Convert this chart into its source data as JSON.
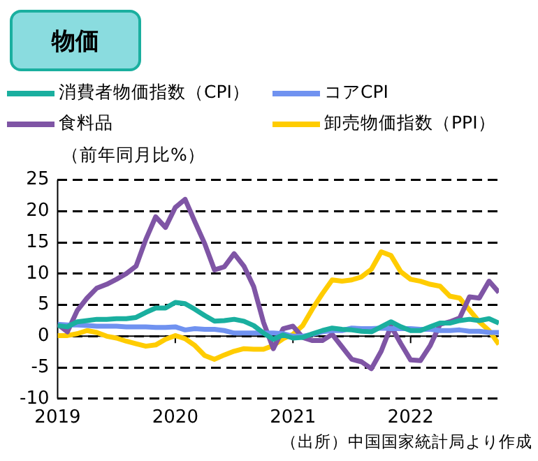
{
  "chart_data": {
    "type": "line",
    "title": "物価",
    "ylabel": "（前年同月比%）",
    "annotations": [
      "（出所）中国国家統計局より作成"
    ],
    "x": [
      "2019-01",
      "2019-02",
      "2019-03",
      "2019-04",
      "2019-05",
      "2019-06",
      "2019-07",
      "2019-08",
      "2019-09",
      "2019-10",
      "2019-11",
      "2019-12",
      "2020-01",
      "2020-02",
      "2020-03",
      "2020-04",
      "2020-05",
      "2020-06",
      "2020-07",
      "2020-08",
      "2020-09",
      "2020-10",
      "2020-11",
      "2020-12",
      "2021-01",
      "2021-02",
      "2021-03",
      "2021-04",
      "2021-05",
      "2021-06",
      "2021-07",
      "2021-08",
      "2021-09",
      "2021-10",
      "2021-11",
      "2021-12",
      "2022-01",
      "2022-02",
      "2022-03",
      "2022-04",
      "2022-05",
      "2022-06",
      "2022-07",
      "2022-08",
      "2022-09",
      "2022-10"
    ],
    "series": [
      {
        "name": "消費者物価指数（CPI）",
        "color": "#1aaf9f",
        "values": [
          1.7,
          1.5,
          2.3,
          2.5,
          2.7,
          2.7,
          2.8,
          2.8,
          3.0,
          3.8,
          4.5,
          4.5,
          5.4,
          5.2,
          4.3,
          3.3,
          2.4,
          2.5,
          2.7,
          2.4,
          1.7,
          0.5,
          -0.5,
          0.2,
          -0.3,
          -0.2,
          0.4,
          0.9,
          1.3,
          1.1,
          1.0,
          0.8,
          0.7,
          1.5,
          2.3,
          1.5,
          0.9,
          0.9,
          1.5,
          2.1,
          2.1,
          2.5,
          2.7,
          2.5,
          2.8,
          2.1
        ]
      },
      {
        "name": "コアCPI",
        "color": "#7092f0",
        "values": [
          1.9,
          1.8,
          1.8,
          1.7,
          1.6,
          1.6,
          1.6,
          1.5,
          1.5,
          1.5,
          1.4,
          1.4,
          1.5,
          1.0,
          1.2,
          1.1,
          1.1,
          0.9,
          0.5,
          0.5,
          0.5,
          0.5,
          0.5,
          0.4,
          0.0,
          0.0,
          0.3,
          0.7,
          0.9,
          0.9,
          1.3,
          1.2,
          1.2,
          1.3,
          1.2,
          1.2,
          1.2,
          1.1,
          1.1,
          0.9,
          0.9,
          1.0,
          0.8,
          0.8,
          0.6,
          0.6
        ]
      },
      {
        "name": "食料品",
        "color": "#7f55a5",
        "values": [
          1.9,
          0.7,
          4.1,
          6.1,
          7.7,
          8.3,
          9.1,
          10.0,
          11.2,
          15.5,
          19.1,
          17.4,
          20.6,
          21.9,
          18.3,
          14.8,
          10.6,
          11.1,
          13.2,
          11.2,
          7.9,
          2.2,
          -2.0,
          1.2,
          1.6,
          -0.2,
          -0.7,
          -0.7,
          0.3,
          -1.7,
          -3.7,
          -4.1,
          -5.2,
          -2.4,
          1.6,
          -1.2,
          -3.8,
          -3.9,
          -1.5,
          1.9,
          2.3,
          2.9,
          6.3,
          6.1,
          8.8,
          7.0
        ]
      },
      {
        "name": "卸売物価指数（PPI）",
        "color": "#ffcc00",
        "values": [
          0.1,
          0.1,
          0.4,
          0.9,
          0.6,
          0.0,
          -0.3,
          -0.8,
          -1.2,
          -1.6,
          -1.4,
          -0.5,
          0.1,
          -0.4,
          -1.5,
          -3.1,
          -3.7,
          -3.0,
          -2.4,
          -2.0,
          -2.1,
          -2.1,
          -1.5,
          -0.4,
          0.3,
          1.7,
          4.4,
          6.8,
          9.0,
          8.8,
          9.0,
          9.5,
          10.7,
          13.5,
          12.9,
          10.3,
          9.1,
          8.8,
          8.3,
          8.0,
          6.4,
          6.1,
          4.2,
          2.3,
          0.9,
          -1.3
        ]
      }
    ],
    "xlim": [
      "2019-01",
      "2022-10"
    ],
    "xticks": [
      {
        "value": "2019-01",
        "label": "2019"
      },
      {
        "value": "2020-01",
        "label": "2020"
      },
      {
        "value": "2021-01",
        "label": "2021"
      },
      {
        "value": "2022-01",
        "label": "2022"
      }
    ],
    "ylim": [
      -10,
      25
    ],
    "yticks": [
      -10,
      -5,
      0,
      5,
      10,
      15,
      20,
      25
    ],
    "grid": "y",
    "legend": "top",
    "marker": "none",
    "line_style": "solid"
  }
}
